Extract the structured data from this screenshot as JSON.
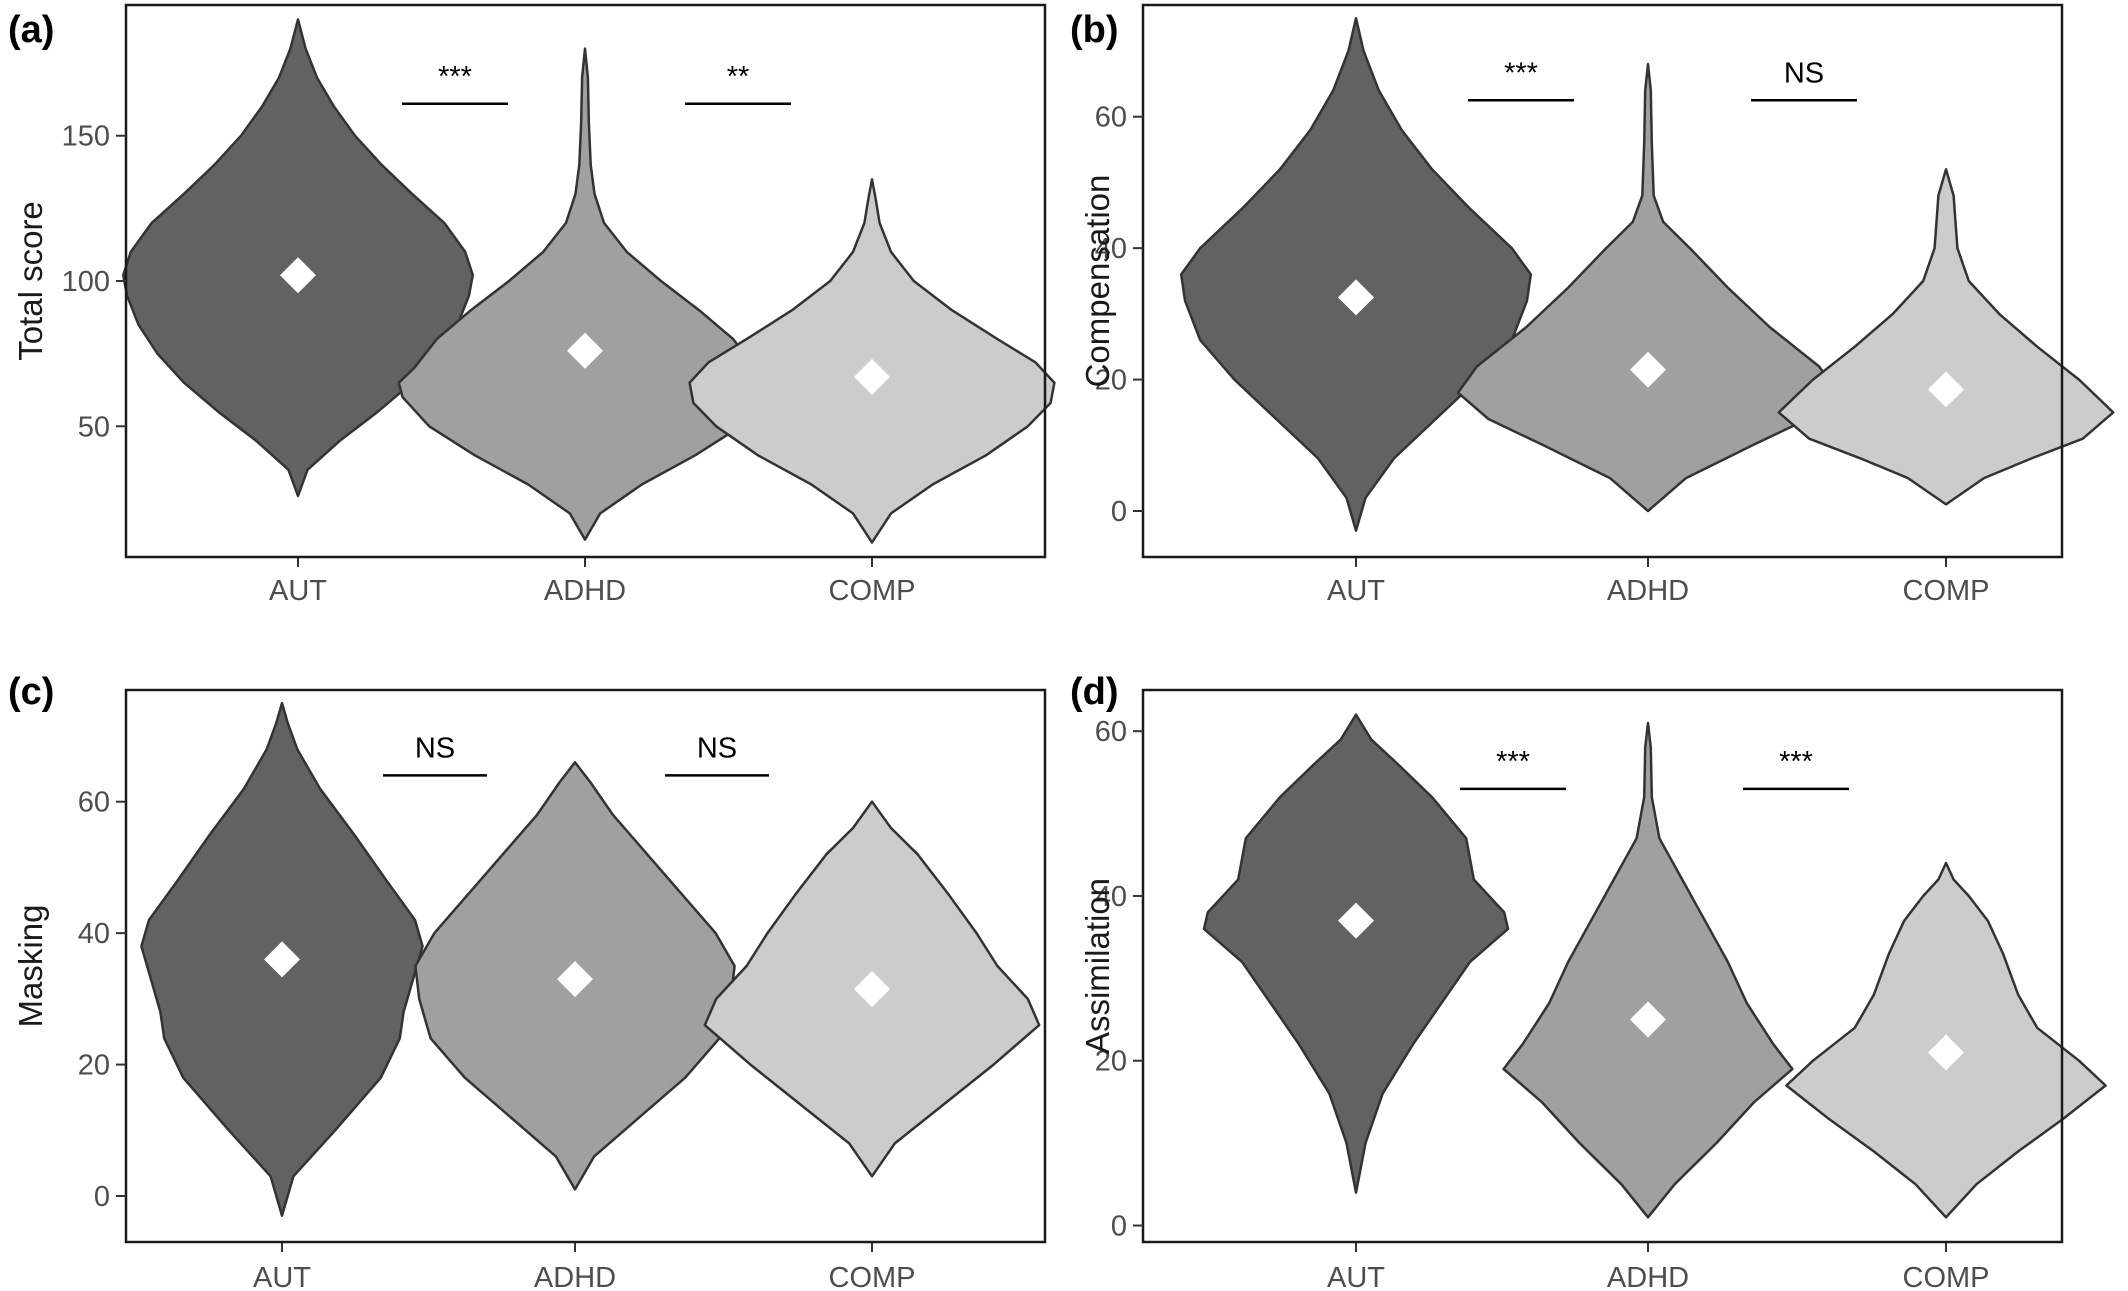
{
  "chart_data": [
    {
      "type": "violin",
      "panel": "(a)",
      "ylabel": "Total score",
      "categories": [
        "AUT",
        "ADHD",
        "COMP"
      ],
      "ylim": [
        5,
        195
      ],
      "yticks": [
        50,
        100,
        150
      ],
      "colors": [
        "#626262",
        "#a0a0a0",
        "#cccccc"
      ],
      "grid": false,
      "means": [
        102,
        76,
        67
      ],
      "ranges": [
        [
          26,
          190
        ],
        [
          11,
          180
        ],
        [
          10,
          135
        ]
      ],
      "profiles": [
        [
          [
            26,
            0
          ],
          [
            35,
            0.05
          ],
          [
            45,
            0.22
          ],
          [
            55,
            0.42
          ],
          [
            65,
            0.6
          ],
          [
            75,
            0.74
          ],
          [
            85,
            0.84
          ],
          [
            95,
            0.9
          ],
          [
            102,
            0.92
          ],
          [
            110,
            0.88
          ],
          [
            120,
            0.77
          ],
          [
            130,
            0.6
          ],
          [
            140,
            0.44
          ],
          [
            150,
            0.3
          ],
          [
            160,
            0.19
          ],
          [
            170,
            0.1
          ],
          [
            180,
            0.04
          ],
          [
            190,
            0
          ]
        ],
        [
          [
            11,
            0
          ],
          [
            20,
            0.08
          ],
          [
            30,
            0.3
          ],
          [
            40,
            0.58
          ],
          [
            50,
            0.82
          ],
          [
            60,
            0.96
          ],
          [
            65,
            0.98
          ],
          [
            70,
            0.9
          ],
          [
            80,
            0.78
          ],
          [
            90,
            0.6
          ],
          [
            100,
            0.4
          ],
          [
            110,
            0.22
          ],
          [
            120,
            0.1
          ],
          [
            130,
            0.05
          ],
          [
            140,
            0.03
          ],
          [
            155,
            0.02
          ],
          [
            170,
            0.015
          ],
          [
            180,
            0
          ]
        ],
        [
          [
            10,
            0
          ],
          [
            20,
            0.1
          ],
          [
            30,
            0.32
          ],
          [
            40,
            0.6
          ],
          [
            50,
            0.82
          ],
          [
            58,
            0.94
          ],
          [
            65,
            0.96
          ],
          [
            72,
            0.86
          ],
          [
            80,
            0.66
          ],
          [
            90,
            0.42
          ],
          [
            100,
            0.22
          ],
          [
            110,
            0.1
          ],
          [
            120,
            0.04
          ],
          [
            128,
            0.02
          ],
          [
            135,
            0
          ]
        ]
      ],
      "comparisons": [
        {
          "between": [
            "AUT",
            "ADHD"
          ],
          "label": "***",
          "y": 161
        },
        {
          "between": [
            "ADHD",
            "COMP"
          ],
          "label": "**",
          "y": 161
        }
      ]
    },
    {
      "type": "violin",
      "panel": "(b)",
      "ylabel": "Compensation",
      "categories": [
        "AUT",
        "ADHD",
        "COMP"
      ],
      "ylim": [
        -7,
        77
      ],
      "yticks": [
        0,
        20,
        40,
        60
      ],
      "colors": [
        "#626262",
        "#a0a0a0",
        "#cccccc"
      ],
      "grid": false,
      "means": [
        32.5,
        21.5,
        18.5
      ],
      "ranges": [
        [
          -3,
          75
        ],
        [
          0,
          68
        ],
        [
          1,
          52
        ]
      ],
      "profiles": [
        [
          [
            -3,
            0
          ],
          [
            2,
            0.05
          ],
          [
            8,
            0.2
          ],
          [
            14,
            0.42
          ],
          [
            20,
            0.64
          ],
          [
            26,
            0.82
          ],
          [
            32,
            0.9
          ],
          [
            36,
            0.92
          ],
          [
            40,
            0.82
          ],
          [
            46,
            0.6
          ],
          [
            52,
            0.4
          ],
          [
            58,
            0.24
          ],
          [
            64,
            0.12
          ],
          [
            70,
            0.04
          ],
          [
            75,
            0
          ]
        ],
        [
          [
            0,
            0
          ],
          [
            5,
            0.2
          ],
          [
            10,
            0.55
          ],
          [
            14,
            0.84
          ],
          [
            18,
            1
          ],
          [
            22,
            0.9
          ],
          [
            28,
            0.64
          ],
          [
            34,
            0.42
          ],
          [
            40,
            0.22
          ],
          [
            44,
            0.08
          ],
          [
            48,
            0.03
          ],
          [
            56,
            0.02
          ],
          [
            64,
            0.015
          ],
          [
            68,
            0
          ]
        ],
        [
          [
            1,
            0
          ],
          [
            5,
            0.2
          ],
          [
            8,
            0.45
          ],
          [
            11,
            0.72
          ],
          [
            15,
            0.88
          ],
          [
            20,
            0.7
          ],
          [
            25,
            0.48
          ],
          [
            30,
            0.28
          ],
          [
            35,
            0.12
          ],
          [
            40,
            0.06
          ],
          [
            44,
            0.05
          ],
          [
            48,
            0.04
          ],
          [
            52,
            0
          ]
        ]
      ],
      "comparisons": [
        {
          "between": [
            "AUT",
            "ADHD"
          ],
          "label": "***",
          "y": 62.5
        },
        {
          "between": [
            "ADHD",
            "COMP"
          ],
          "label": "NS",
          "y": 62.5
        }
      ]
    },
    {
      "type": "violin",
      "panel": "(c)",
      "ylabel": "Masking",
      "categories": [
        "AUT",
        "ADHD",
        "COMP"
      ],
      "ylim": [
        -7,
        77
      ],
      "yticks": [
        0,
        20,
        40,
        60
      ],
      "colors": [
        "#626262",
        "#a0a0a0",
        "#cccccc"
      ],
      "grid": false,
      "means": [
        36,
        33,
        31.5
      ],
      "ranges": [
        [
          -3,
          75
        ],
        [
          1,
          66
        ],
        [
          3,
          60
        ]
      ],
      "profiles": [
        [
          [
            -3,
            0
          ],
          [
            3,
            0.06
          ],
          [
            10,
            0.28
          ],
          [
            18,
            0.52
          ],
          [
            24,
            0.62
          ],
          [
            28,
            0.64
          ],
          [
            32,
            0.68
          ],
          [
            38,
            0.74
          ],
          [
            42,
            0.7
          ],
          [
            48,
            0.55
          ],
          [
            55,
            0.38
          ],
          [
            62,
            0.2
          ],
          [
            68,
            0.08
          ],
          [
            72,
            0.03
          ],
          [
            75,
            0
          ]
        ],
        [
          [
            1,
            0
          ],
          [
            6,
            0.1
          ],
          [
            12,
            0.34
          ],
          [
            18,
            0.58
          ],
          [
            24,
            0.76
          ],
          [
            30,
            0.82
          ],
          [
            35,
            0.84
          ],
          [
            40,
            0.74
          ],
          [
            46,
            0.56
          ],
          [
            52,
            0.38
          ],
          [
            58,
            0.2
          ],
          [
            63,
            0.08
          ],
          [
            66,
            0
          ]
        ],
        [
          [
            3,
            0
          ],
          [
            8,
            0.12
          ],
          [
            14,
            0.38
          ],
          [
            20,
            0.64
          ],
          [
            26,
            0.88
          ],
          [
            30,
            0.82
          ],
          [
            35,
            0.66
          ],
          [
            40,
            0.55
          ],
          [
            46,
            0.4
          ],
          [
            52,
            0.24
          ],
          [
            56,
            0.1
          ],
          [
            60,
            0
          ]
        ]
      ],
      "comparisons": [
        {
          "between": [
            "AUT",
            "ADHD"
          ],
          "label": "NS",
          "y": 64
        },
        {
          "between": [
            "ADHD",
            "COMP"
          ],
          "label": "NS",
          "y": 64
        }
      ]
    },
    {
      "type": "violin",
      "panel": "(d)",
      "ylabel": "Assimilation",
      "categories": [
        "AUT",
        "ADHD",
        "COMP"
      ],
      "ylim": [
        -2,
        65
      ],
      "yticks": [
        0,
        20,
        40,
        60
      ],
      "colors": [
        "#626262",
        "#a0a0a0",
        "#cccccc"
      ],
      "grid": false,
      "means": [
        37,
        25,
        21
      ],
      "ranges": [
        [
          4,
          62
        ],
        [
          1,
          61
        ],
        [
          1,
          44
        ]
      ],
      "profiles": [
        [
          [
            4,
            0
          ],
          [
            10,
            0.05
          ],
          [
            16,
            0.14
          ],
          [
            22,
            0.3
          ],
          [
            28,
            0.48
          ],
          [
            32,
            0.6
          ],
          [
            36,
            0.8
          ],
          [
            38,
            0.78
          ],
          [
            42,
            0.62
          ],
          [
            47,
            0.58
          ],
          [
            52,
            0.4
          ],
          [
            56,
            0.22
          ],
          [
            59,
            0.08
          ],
          [
            62,
            0
          ]
        ],
        [
          [
            1,
            0
          ],
          [
            5,
            0.14
          ],
          [
            10,
            0.36
          ],
          [
            15,
            0.56
          ],
          [
            19,
            0.76
          ],
          [
            22,
            0.66
          ],
          [
            27,
            0.52
          ],
          [
            32,
            0.42
          ],
          [
            37,
            0.3
          ],
          [
            42,
            0.18
          ],
          [
            47,
            0.06
          ],
          [
            52,
            0.02
          ],
          [
            58,
            0.015
          ],
          [
            61,
            0
          ]
        ],
        [
          [
            1,
            0
          ],
          [
            5,
            0.16
          ],
          [
            9,
            0.38
          ],
          [
            13,
            0.62
          ],
          [
            17,
            0.84
          ],
          [
            20,
            0.7
          ],
          [
            24,
            0.48
          ],
          [
            28,
            0.38
          ],
          [
            33,
            0.3
          ],
          [
            37,
            0.22
          ],
          [
            40,
            0.12
          ],
          [
            42,
            0.04
          ],
          [
            44,
            0
          ]
        ]
      ],
      "comparisons": [
        {
          "between": [
            "AUT",
            "ADHD"
          ],
          "label": "***",
          "y": 53
        },
        {
          "between": [
            "ADHD",
            "COMP"
          ],
          "label": "***",
          "y": 53
        }
      ]
    }
  ]
}
